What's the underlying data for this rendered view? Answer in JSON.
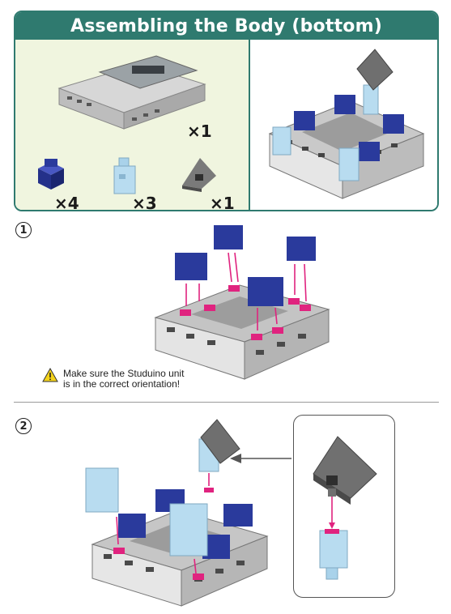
{
  "parts": {
    "title": "Assembling the Body (bottom)",
    "items": [
      {
        "name": "studuino-unit",
        "qty": "×1"
      },
      {
        "name": "blue-block",
        "qty": "×4"
      },
      {
        "name": "light-blue-block",
        "qty": "×3"
      },
      {
        "name": "gray-triangle-block",
        "qty": "×1"
      }
    ]
  },
  "steps": [
    {
      "number": "1",
      "warning": "Make sure the Studuino unit\nis in the correct orientation!"
    },
    {
      "number": "2"
    }
  ],
  "colors": {
    "accent": "#2f7a6f",
    "panel_bg": "#f0f5df",
    "blue_block": "#2a3a9c",
    "light_blue_block": "#a9d2ea",
    "magenta_marker": "#e0237f",
    "gray_block": "#6f6f6f"
  }
}
